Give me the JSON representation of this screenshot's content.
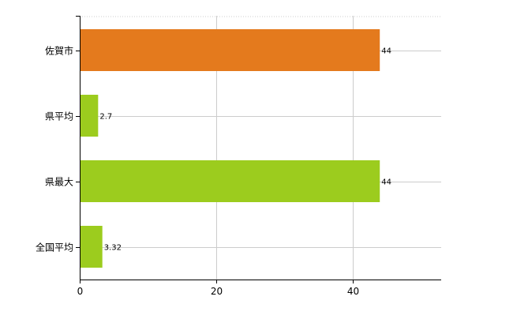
{
  "chart_data": {
    "type": "bar",
    "orientation": "horizontal",
    "categories": [
      "佐賀市",
      "県平均",
      "県最大",
      "全国平均"
    ],
    "values": [
      44,
      2.7,
      44,
      3.32
    ],
    "value_labels": [
      "44",
      "2.7",
      "44",
      "3.32"
    ],
    "bar_colors": [
      "#e47a1d",
      "#9ccc1e",
      "#9ccc1e",
      "#9ccc1e"
    ],
    "xlim": [
      0,
      53
    ],
    "xticks": [
      0,
      20,
      40
    ],
    "xtick_labels": [
      "0",
      "20",
      "40"
    ],
    "grid": true,
    "gridline_color": "#cccccc",
    "title": "",
    "xlabel": "",
    "ylabel": ""
  }
}
